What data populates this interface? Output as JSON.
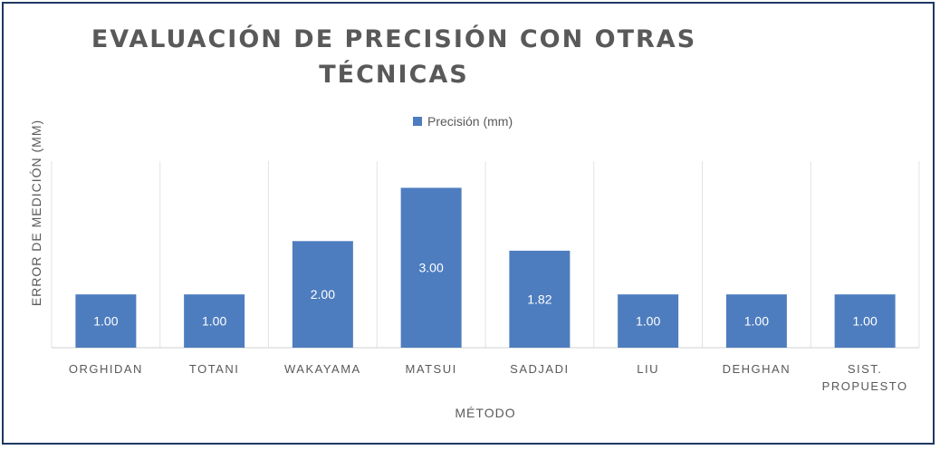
{
  "chart_data": {
    "type": "bar",
    "title_lines": [
      "EVALUACIÓN DE PRECISIÓN CON OTRAS",
      "TÉCNICAS"
    ],
    "xlabel": "MÉTODO",
    "ylabel": "ERROR DE MEDICIÓN (MM)",
    "legend_position": "top",
    "grid": "vertical separators",
    "ylim": [
      0,
      3.5
    ],
    "categories": [
      [
        "ORGHIDAN"
      ],
      [
        "TOTANI"
      ],
      [
        "WAKAYAMA"
      ],
      [
        "MATSUI"
      ],
      [
        "SADJADI"
      ],
      [
        "LIU"
      ],
      [
        "DEHGHAN"
      ],
      [
        "SIST.",
        "PROPUESTO"
      ]
    ],
    "series": [
      {
        "name": "Precisión (mm)",
        "values": [
          1.0,
          1.0,
          2.0,
          3.0,
          1.82,
          1.0,
          1.0,
          1.0
        ],
        "labels": [
          "1.00",
          "1.00",
          "2.00",
          "3.00",
          "1.82",
          "1.00",
          "1.00",
          "1.00"
        ],
        "color": "#4e7dbf"
      }
    ]
  }
}
